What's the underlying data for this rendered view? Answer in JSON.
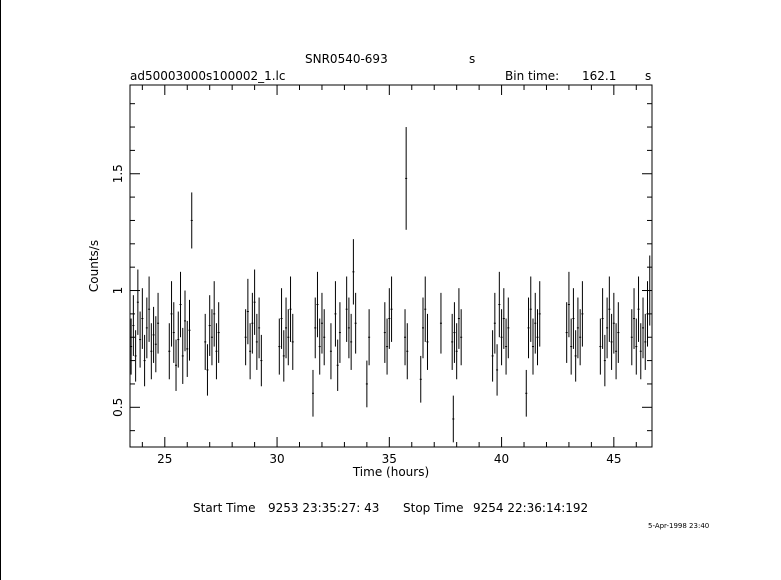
{
  "chart_data": {
    "type": "line",
    "title": "SNR0540-693",
    "title_suffix": "s",
    "file_label": "ad50003000s100002_1.lc",
    "bin_time_label": "Bin time:",
    "bin_time_value": "162.1",
    "bin_time_unit": "s",
    "xlabel": "Time (hours)",
    "ylabel": "Counts/s",
    "xlim": [
      23.45,
      46.7
    ],
    "ylim": [
      0.33,
      1.88
    ],
    "xticks": [
      25,
      30,
      35,
      40,
      45
    ],
    "xtick_labels": [
      "25",
      "30",
      "35",
      "40",
      "45"
    ],
    "yticks": [
      0.5,
      1,
      1.5
    ],
    "ytick_labels": [
      "0.5",
      "1",
      "1.5"
    ],
    "grid": false,
    "series": [
      {
        "points": [
          [
            23.5,
            0.76,
            0.12
          ],
          [
            23.6,
            0.85,
            0.13
          ],
          [
            23.7,
            0.72,
            0.11
          ],
          [
            23.8,
            0.95,
            0.14
          ],
          [
            23.9,
            0.79,
            0.12
          ],
          [
            24.0,
            0.88,
            0.13
          ],
          [
            24.1,
            0.7,
            0.11
          ],
          [
            24.2,
            0.84,
            0.13
          ],
          [
            24.3,
            0.92,
            0.14
          ],
          [
            24.4,
            0.74,
            0.12
          ],
          [
            24.5,
            0.81,
            0.12
          ],
          [
            24.6,
            0.77,
            0.12
          ],
          [
            24.7,
            0.86,
            0.13
          ],
          [
            25.2,
            0.74,
            0.12
          ],
          [
            25.3,
            0.9,
            0.14
          ],
          [
            25.4,
            0.82,
            0.13
          ],
          [
            25.5,
            0.68,
            0.11
          ],
          [
            25.6,
            0.79,
            0.12
          ],
          [
            25.7,
            0.94,
            0.14
          ],
          [
            25.8,
            0.72,
            0.12
          ],
          [
            25.9,
            0.87,
            0.13
          ],
          [
            26.0,
            0.75,
            0.12
          ],
          [
            26.1,
            0.83,
            0.13
          ],
          [
            26.2,
            1.3,
            0.12
          ],
          [
            26.8,
            0.78,
            0.12
          ],
          [
            26.9,
            0.66,
            0.11
          ],
          [
            27.0,
            0.85,
            0.13
          ],
          [
            27.1,
            0.8,
            0.12
          ],
          [
            27.2,
            0.9,
            0.14
          ],
          [
            27.3,
            0.74,
            0.12
          ],
          [
            27.4,
            0.82,
            0.13
          ],
          [
            28.6,
            0.8,
            0.12
          ],
          [
            28.7,
            0.91,
            0.14
          ],
          [
            28.8,
            0.74,
            0.12
          ],
          [
            28.9,
            0.86,
            0.13
          ],
          [
            29.0,
            0.95,
            0.14
          ],
          [
            29.1,
            0.78,
            0.12
          ],
          [
            29.2,
            0.84,
            0.13
          ],
          [
            29.3,
            0.7,
            0.11
          ],
          [
            30.1,
            0.76,
            0.12
          ],
          [
            30.2,
            0.88,
            0.13
          ],
          [
            30.3,
            0.72,
            0.11
          ],
          [
            30.4,
            0.84,
            0.13
          ],
          [
            30.5,
            0.8,
            0.12
          ],
          [
            30.6,
            0.92,
            0.14
          ],
          [
            30.7,
            0.78,
            0.12
          ],
          [
            31.6,
            0.56,
            0.1
          ],
          [
            31.7,
            0.84,
            0.13
          ],
          [
            31.8,
            0.94,
            0.14
          ],
          [
            31.9,
            0.76,
            0.12
          ],
          [
            32.0,
            0.86,
            0.13
          ],
          [
            32.1,
            0.8,
            0.12
          ],
          [
            32.4,
            0.74,
            0.12
          ],
          [
            32.6,
            0.9,
            0.14
          ],
          [
            32.7,
            0.68,
            0.11
          ],
          [
            32.8,
            0.82,
            0.13
          ],
          [
            33.1,
            0.92,
            0.14
          ],
          [
            33.2,
            0.84,
            0.13
          ],
          [
            33.3,
            0.78,
            0.12
          ],
          [
            33.4,
            1.08,
            0.14
          ],
          [
            33.5,
            0.86,
            0.13
          ],
          [
            34.0,
            0.6,
            0.1
          ],
          [
            34.1,
            0.8,
            0.12
          ],
          [
            34.8,
            0.82,
            0.13
          ],
          [
            34.9,
            0.76,
            0.12
          ],
          [
            35.0,
            0.88,
            0.13
          ],
          [
            35.1,
            0.92,
            0.14
          ],
          [
            35.7,
            0.8,
            0.12
          ],
          [
            35.75,
            1.48,
            0.22
          ],
          [
            35.8,
            0.74,
            0.12
          ],
          [
            36.4,
            0.62,
            0.1
          ],
          [
            36.5,
            0.84,
            0.13
          ],
          [
            36.6,
            0.92,
            0.14
          ],
          [
            36.7,
            0.78,
            0.12
          ],
          [
            37.3,
            0.86,
            0.13
          ],
          [
            37.8,
            0.78,
            0.12
          ],
          [
            37.85,
            0.45,
            0.1
          ],
          [
            37.9,
            0.82,
            0.13
          ],
          [
            38.0,
            0.74,
            0.12
          ],
          [
            38.1,
            0.88,
            0.13
          ],
          [
            38.2,
            0.8,
            0.12
          ],
          [
            39.6,
            0.72,
            0.11
          ],
          [
            39.7,
            0.86,
            0.13
          ],
          [
            39.8,
            0.66,
            0.11
          ],
          [
            39.9,
            0.94,
            0.14
          ],
          [
            40.0,
            0.8,
            0.12
          ],
          [
            40.1,
            0.88,
            0.13
          ],
          [
            40.2,
            0.76,
            0.12
          ],
          [
            40.3,
            0.84,
            0.13
          ],
          [
            41.1,
            0.56,
            0.1
          ],
          [
            41.2,
            0.84,
            0.13
          ],
          [
            41.3,
            0.92,
            0.14
          ],
          [
            41.4,
            0.76,
            0.12
          ],
          [
            41.5,
            0.86,
            0.13
          ],
          [
            41.6,
            0.8,
            0.12
          ],
          [
            41.7,
            0.9,
            0.14
          ],
          [
            42.9,
            0.82,
            0.13
          ],
          [
            43.0,
            0.94,
            0.14
          ],
          [
            43.1,
            0.76,
            0.12
          ],
          [
            43.2,
            0.88,
            0.13
          ],
          [
            43.3,
            0.72,
            0.11
          ],
          [
            43.4,
            0.84,
            0.13
          ],
          [
            43.5,
            0.8,
            0.12
          ],
          [
            43.6,
            0.9,
            0.14
          ],
          [
            44.4,
            0.76,
            0.12
          ],
          [
            44.5,
            0.88,
            0.13
          ],
          [
            44.6,
            0.7,
            0.11
          ],
          [
            44.7,
            0.84,
            0.13
          ],
          [
            44.8,
            0.92,
            0.14
          ],
          [
            44.9,
            0.78,
            0.12
          ],
          [
            45.0,
            0.86,
            0.13
          ],
          [
            45.1,
            0.74,
            0.12
          ],
          [
            45.2,
            0.82,
            0.13
          ],
          [
            45.8,
            0.8,
            0.12
          ],
          [
            45.9,
            0.88,
            0.13
          ],
          [
            46.0,
            0.76,
            0.12
          ],
          [
            46.1,
            0.92,
            0.14
          ],
          [
            46.2,
            0.74,
            0.12
          ],
          [
            46.3,
            0.84,
            0.13
          ],
          [
            46.4,
            0.78,
            0.12
          ],
          [
            46.5,
            0.9,
            0.14
          ],
          [
            46.6,
            1.0,
            0.15
          ]
        ]
      }
    ]
  },
  "footer": {
    "start_label": "Start Time",
    "start_value": "9253 23:35:27: 43",
    "stop_label": "Stop Time",
    "stop_value": "9254 22:36:14:192",
    "date_stamp": "5-Apr-1998 23:40"
  }
}
